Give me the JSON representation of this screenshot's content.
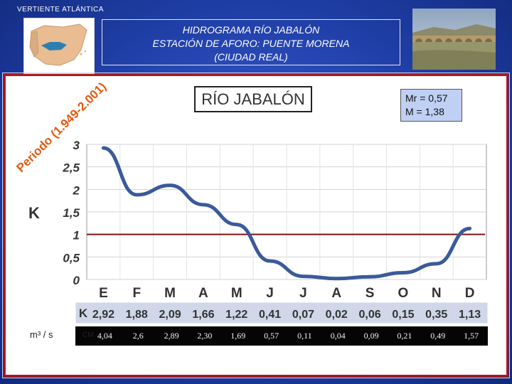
{
  "header": {
    "slope_label": "VERTIENTE ATLÁNTICA",
    "title_lines": [
      "HIDROGRAMA RÍO JABALÓN",
      "ESTACIÓN DE AFORO: PUENTE MORENA",
      "(CIUDAD REAL)"
    ]
  },
  "panel": {
    "river_name": "RÍO JABALÓN",
    "period": "Periodo (1.949-2.001)",
    "mr_text": "Mr = 0,57",
    "m_text": "M = 1,38",
    "k_row_label": "K",
    "m3_label": "m³ / s",
    "cm_label": "CM",
    "cm_values": [
      "4,04",
      "2,6",
      "2,89",
      "2,30",
      "1,69",
      "0,57",
      "0,11",
      "0,04",
      "0,09",
      "0,21",
      "0,49",
      "1,57"
    ]
  },
  "colors": {
    "line": "#3a5a9a",
    "reference": "#7a1010",
    "table_bg": "#cfd7e8",
    "background": "#1f3ea6"
  },
  "chart_data": {
    "type": "line",
    "title": "RÍO JABALÓN",
    "categories": [
      "E",
      "F",
      "M",
      "A",
      "M",
      "J",
      "J",
      "A",
      "S",
      "O",
      "N",
      "D"
    ],
    "series": [
      {
        "name": "K",
        "values": [
          2.92,
          1.88,
          2.09,
          1.66,
          1.22,
          0.41,
          0.07,
          0.02,
          0.06,
          0.15,
          0.35,
          1.13
        ]
      }
    ],
    "value_labels": [
      "2,92",
      "1,88",
      "2,09",
      "1,66",
      "1,22",
      "0,41",
      "0,07",
      "0,02",
      "0,06",
      "0,15",
      "0,35",
      "1,13"
    ],
    "reference_line": 1,
    "ylabel": "K",
    "ylim": [
      0,
      3
    ],
    "yticks": [
      0,
      0.5,
      1,
      1.5,
      2,
      2.5,
      3
    ],
    "ytick_labels": [
      "0",
      "0,5",
      "1",
      "1,5",
      "2",
      "2,5",
      "3"
    ],
    "grid": true
  }
}
